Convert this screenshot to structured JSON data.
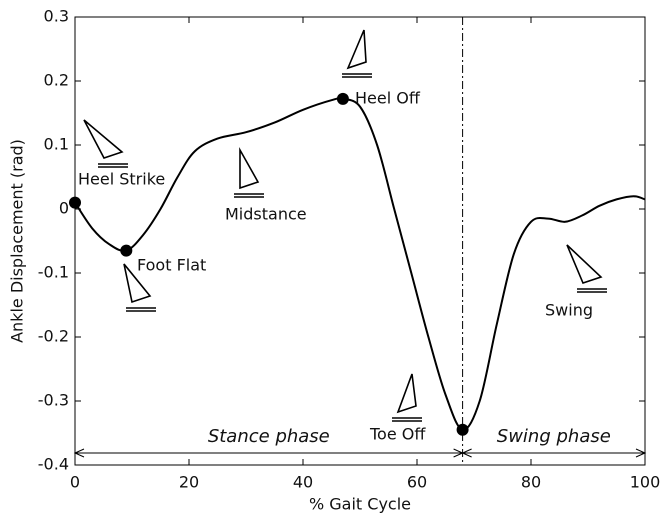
{
  "chart_data": {
    "type": "line",
    "xlabel": "% Gait Cycle",
    "ylabel": "Ankle Displacement (rad)",
    "x": [
      0,
      3,
      6,
      9,
      12,
      15,
      18,
      21,
      25,
      30,
      35,
      40,
      45,
      47,
      50,
      53,
      56,
      59,
      62,
      65,
      68,
      71,
      74,
      77,
      80,
      83,
      86,
      89,
      92,
      95,
      98,
      100
    ],
    "series": [
      {
        "color": "#000000",
        "values": [
          0.01,
          -0.03,
          -0.055,
          -0.065,
          -0.04,
          0.0,
          0.05,
          0.09,
          0.11,
          0.12,
          0.135,
          0.155,
          0.17,
          0.172,
          0.16,
          0.1,
          0.0,
          -0.1,
          -0.2,
          -0.29,
          -0.345,
          -0.3,
          -0.18,
          -0.07,
          -0.02,
          -0.015,
          -0.02,
          -0.01,
          0.005,
          0.015,
          0.02,
          0.015
        ]
      }
    ],
    "key_events": [
      {
        "label": "Heel Strike",
        "x": 0,
        "y": 0.01
      },
      {
        "label": "Foot Flat",
        "x": 9,
        "y": -0.065
      },
      {
        "label": "Heel Off",
        "x": 47,
        "y": 0.172
      },
      {
        "label": "Toe Off",
        "x": 68,
        "y": -0.345
      }
    ],
    "phase_labels": [
      "Midstance",
      "Swing"
    ],
    "phases": [
      "Stance phase",
      "Swing phase"
    ],
    "phase_boundary": 68,
    "xlim": [
      0,
      100
    ],
    "xticks": [
      0,
      20,
      40,
      60,
      80,
      100
    ],
    "ylim": [
      -0.4,
      0.3
    ],
    "yticks": [
      -0.4,
      -0.3,
      -0.2,
      -0.1,
      0,
      0.1,
      0.2,
      0.3
    ]
  }
}
